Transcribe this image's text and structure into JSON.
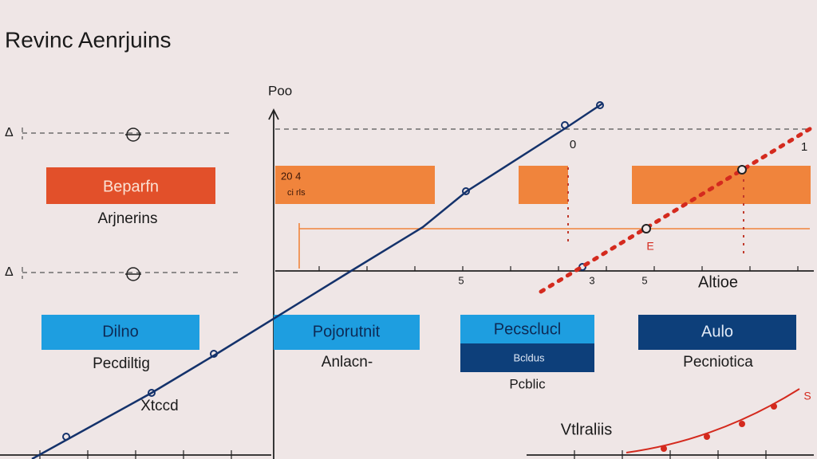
{
  "header": {
    "title": "Revinc Aenrjuins"
  },
  "axis": {
    "label": "Poo",
    "x_label": "Altioe",
    "bottom_label": "Vtlraliis",
    "marker": "Δ"
  },
  "boxes": [
    {
      "label": "Beparfn",
      "caption": "Arjnerins"
    },
    {
      "label": "20 4",
      "caption": "ci rls"
    },
    {
      "label": "Dilno",
      "caption": "Pecdiltig"
    },
    {
      "label": "Pojorutnit",
      "caption": "Anlacn-"
    },
    {
      "label": "Pecsclucl",
      "caption": "Bcldus"
    },
    {
      "label": "Aulo",
      "caption": "Pecniotica"
    }
  ],
  "notes": [
    "Pcblic",
    "Xtccd",
    "0",
    "1",
    "5",
    "3",
    "5",
    "E",
    "S"
  ]
}
